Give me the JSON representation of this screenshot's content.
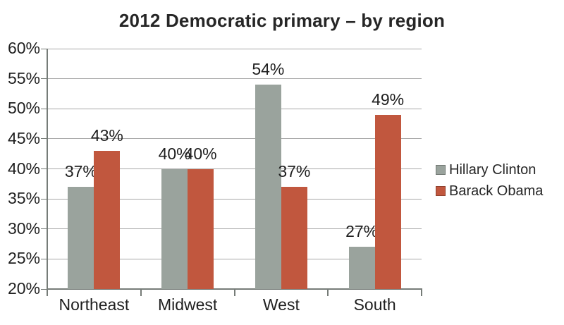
{
  "title": "2012 Democratic primary – by region",
  "colors": {
    "clinton_bar": "#9aa39d",
    "obama_bar": "#c1573e",
    "gridline": "#a8a8a8",
    "axis": "#767c78",
    "text": "#1f1f1f",
    "background": "#ffffff"
  },
  "chart_data": {
    "type": "bar",
    "title": "2012 Democratic primary – by region",
    "categories": [
      "Northeast",
      "Midwest",
      "West",
      "South"
    ],
    "series": [
      {
        "name": "Hillary Clinton",
        "color": "#9aa39d",
        "values": [
          37,
          40,
          54,
          27
        ],
        "data_labels": [
          "37%",
          "40%",
          "54%",
          "27%"
        ]
      },
      {
        "name": "Barack Obama",
        "color": "#c1573e",
        "values": [
          43,
          40,
          37,
          49
        ],
        "data_labels": [
          "43%",
          "40%",
          "37%",
          "49%"
        ]
      }
    ],
    "xlabel": "",
    "ylabel": "",
    "ylim": [
      20,
      60
    ],
    "y_tick_step": 5,
    "y_tick_labels": [
      "60%",
      "55%",
      "50%",
      "45%",
      "40%",
      "35%",
      "30%",
      "25%",
      "20%"
    ],
    "grid": true,
    "legend_position": "right"
  },
  "legend": {
    "items": [
      {
        "label": "Hillary Clinton",
        "color": "#9aa39d"
      },
      {
        "label": "Barack Obama",
        "color": "#c1573e"
      }
    ]
  }
}
